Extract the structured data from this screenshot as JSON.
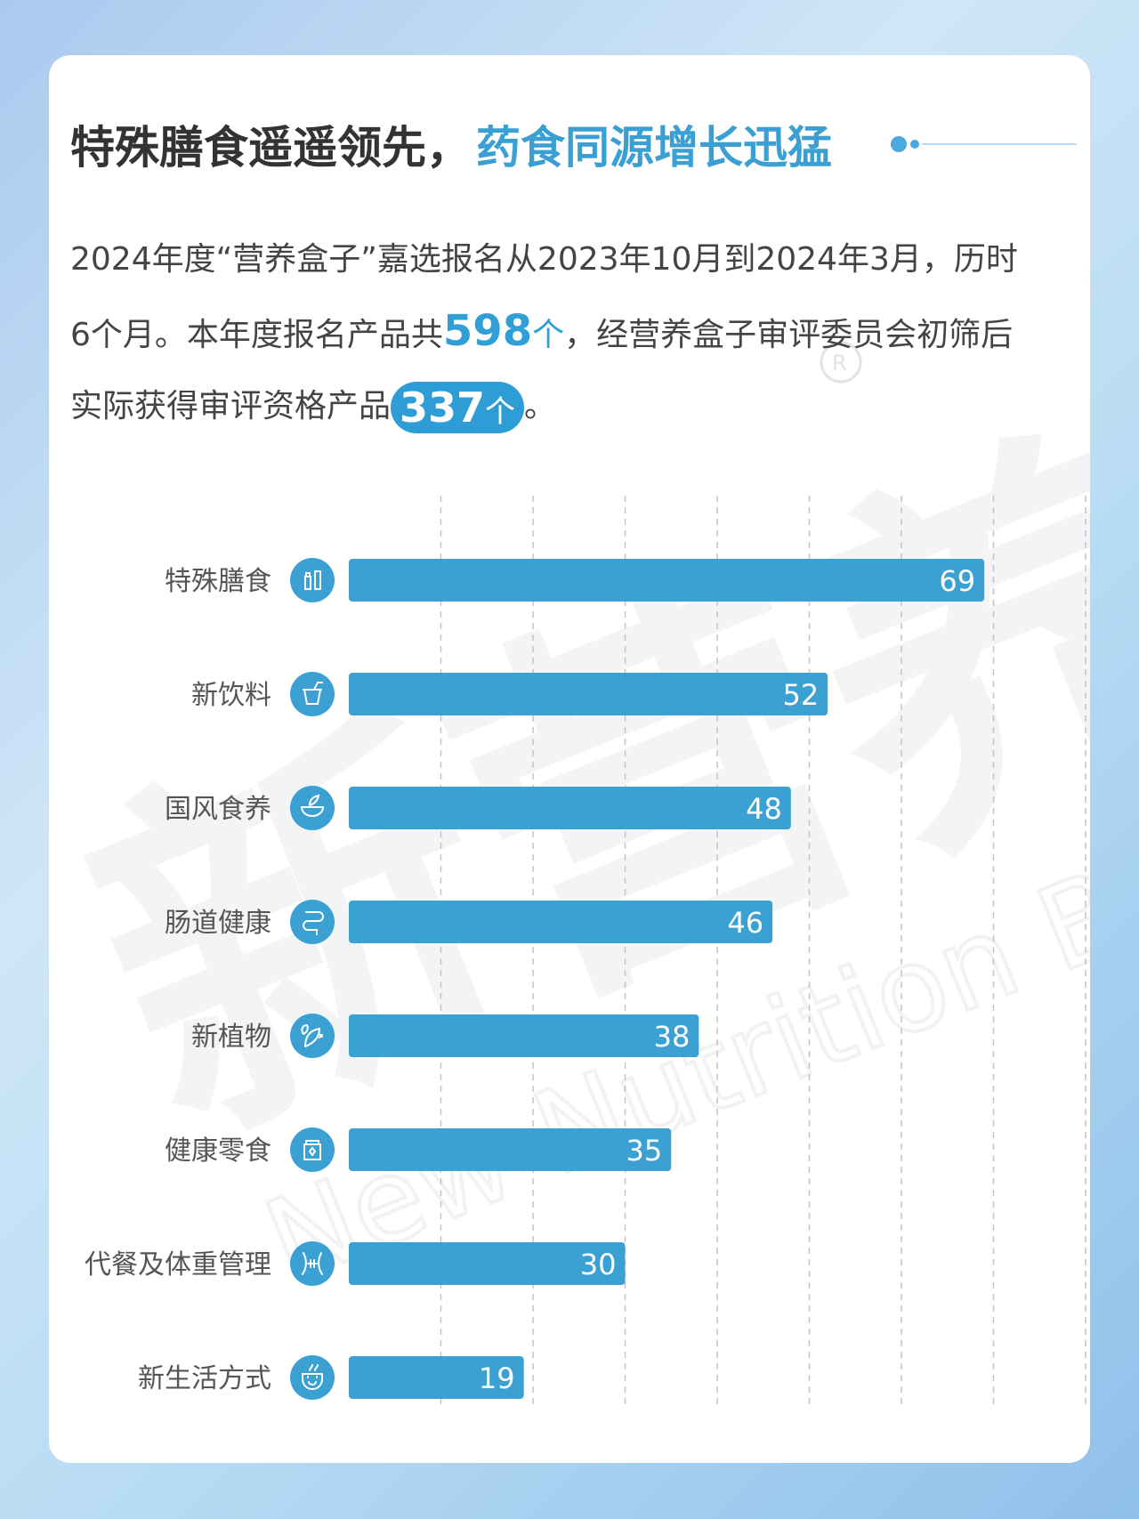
{
  "title": {
    "main": "特殊膳食遥遥领先，",
    "highlight": "药食同源增长迅猛"
  },
  "intro": {
    "line1": "2024年度“营养盒子”嘉选报名从2023年10月到2024年3月，历时",
    "line2_pre": "6个月。本年度报名产品共",
    "num1": "598",
    "unit1": "个",
    "line2_post": "，经营养盒子审评委员会初筛后",
    "line3_pre": "实际获得审评资格产品",
    "num2": "337",
    "unit2": "个",
    "line3_post": "。"
  },
  "colors": {
    "bar": "#3ba1d2",
    "accent": "#2f9fd6",
    "grid": "#c4c4c4",
    "label": "#555555"
  },
  "chart_data": {
    "type": "bar",
    "orientation": "horizontal",
    "categories": [
      "特殊膳食",
      "新饮料",
      "国风食养",
      "肠道健康",
      "新植物",
      "健康零食",
      "代餐及体重管理",
      "新生活方式"
    ],
    "values": [
      69,
      52,
      48,
      46,
      38,
      35,
      30,
      19
    ],
    "icons": [
      "bottle-icon",
      "drink-cup-icon",
      "herbal-bowl-icon",
      "intestine-icon",
      "plant-leaf-icon",
      "snack-jar-icon",
      "waist-icon",
      "happy-cup-icon"
    ],
    "xlim": [
      0,
      80
    ],
    "grid": true
  }
}
